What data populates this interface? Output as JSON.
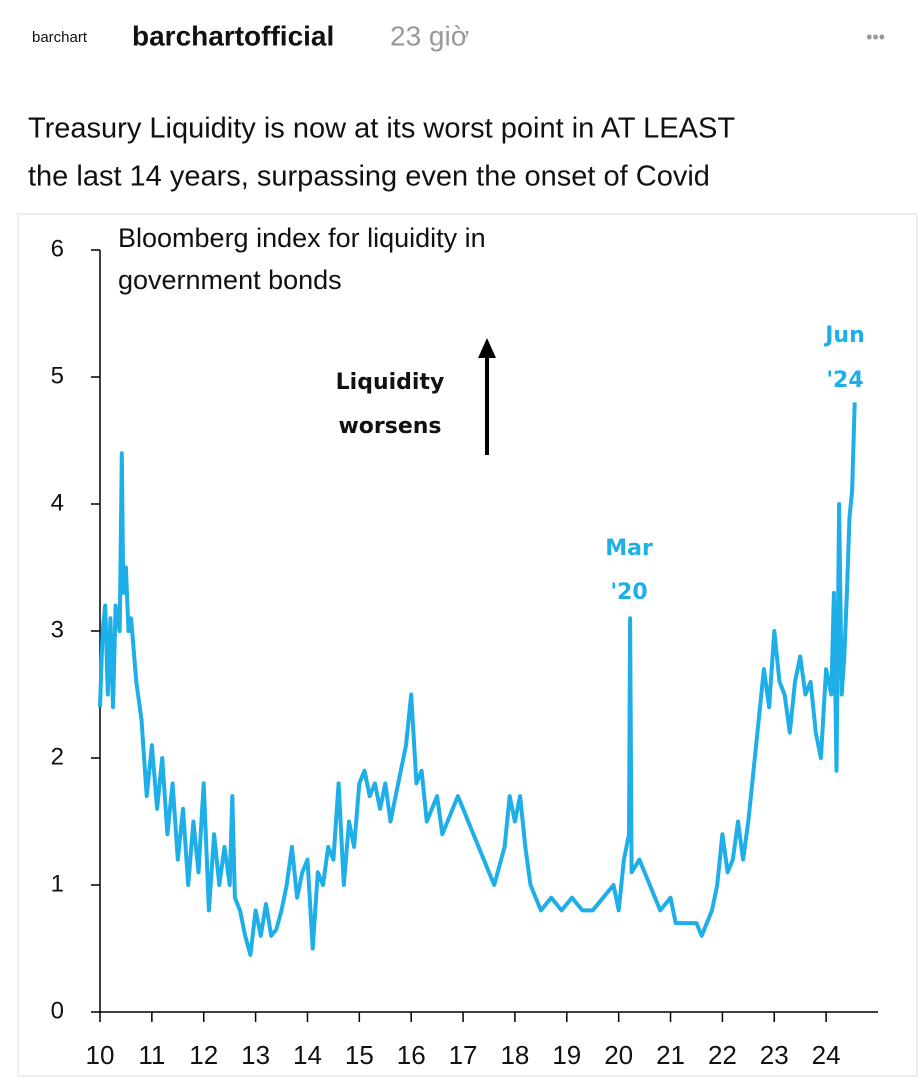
{
  "post": {
    "brand": "barchart",
    "author": "barchartofficial",
    "time": "23 giờ",
    "menu": "•••",
    "text": [
      "Treasury Liquidity is now at its worst point in AT LEAST",
      "the last 14 years, surpassing even the onset of Covid"
    ]
  },
  "chart_data": {
    "type": "line",
    "title": [
      "Bloomberg index for liquidity in",
      "government bonds"
    ],
    "annotations": [
      {
        "lines": [
          "Liquidity",
          "worsens"
        ]
      },
      {
        "lines": [
          "Mar",
          "'20"
        ]
      },
      {
        "lines": [
          "Jun",
          "'24"
        ]
      }
    ],
    "xlim": [
      10,
      25
    ],
    "xticks": [
      10,
      11,
      12,
      13,
      14,
      15,
      16,
      17,
      18,
      19,
      20,
      21,
      22,
      23,
      24
    ],
    "ylim": [
      0,
      6
    ],
    "yticks": [
      0,
      1,
      2,
      3,
      4,
      5,
      6
    ],
    "series": [
      {
        "color": "#1eaee8",
        "x": [
          10.0,
          10.05,
          10.1,
          10.15,
          10.2,
          10.25,
          10.3,
          10.38,
          10.42,
          10.45,
          10.5,
          10.55,
          10.6,
          10.7,
          10.8,
          10.9,
          11.0,
          11.1,
          11.2,
          11.3,
          11.4,
          11.5,
          11.6,
          11.7,
          11.8,
          11.9,
          12.0,
          12.1,
          12.2,
          12.3,
          12.4,
          12.5,
          12.55,
          12.6,
          12.7,
          12.8,
          12.9,
          13.0,
          13.1,
          13.2,
          13.3,
          13.4,
          13.5,
          13.6,
          13.7,
          13.8,
          13.9,
          14.0,
          14.1,
          14.2,
          14.3,
          14.4,
          14.5,
          14.6,
          14.7,
          14.8,
          14.9,
          15.0,
          15.1,
          15.2,
          15.3,
          15.4,
          15.5,
          15.6,
          15.7,
          15.8,
          15.9,
          16.0,
          16.1,
          16.2,
          16.3,
          16.4,
          16.5,
          16.6,
          16.7,
          16.8,
          16.9,
          17.0,
          17.2,
          17.4,
          17.6,
          17.8,
          17.9,
          18.0,
          18.1,
          18.2,
          18.3,
          18.5,
          18.7,
          18.9,
          19.1,
          19.3,
          19.5,
          19.7,
          19.9,
          20.0,
          20.1,
          20.2,
          20.22,
          20.25,
          20.4,
          20.6,
          20.8,
          21.0,
          21.1,
          21.3,
          21.5,
          21.6,
          21.7,
          21.8,
          21.9,
          22.0,
          22.1,
          22.2,
          22.3,
          22.4,
          22.5,
          22.6,
          22.7,
          22.8,
          22.9,
          23.0,
          23.1,
          23.2,
          23.3,
          23.4,
          23.5,
          23.6,
          23.7,
          23.8,
          23.9,
          24.0,
          24.1,
          24.15,
          24.2,
          24.25,
          24.3,
          24.35,
          24.4,
          24.45,
          24.5,
          24.55
        ],
        "values": [
          2.4,
          3.0,
          3.2,
          2.5,
          3.1,
          2.4,
          3.2,
          3.0,
          4.4,
          3.3,
          3.5,
          3.0,
          3.1,
          2.6,
          2.3,
          1.7,
          2.1,
          1.6,
          2.0,
          1.4,
          1.8,
          1.2,
          1.6,
          1.0,
          1.5,
          1.1,
          1.8,
          0.8,
          1.4,
          1.0,
          1.3,
          1.0,
          1.7,
          0.9,
          0.8,
          0.6,
          0.45,
          0.8,
          0.6,
          0.85,
          0.6,
          0.65,
          0.8,
          1.0,
          1.3,
          0.9,
          1.1,
          1.2,
          0.5,
          1.1,
          1.0,
          1.3,
          1.2,
          1.8,
          1.0,
          1.5,
          1.3,
          1.8,
          1.9,
          1.7,
          1.8,
          1.6,
          1.8,
          1.5,
          1.7,
          1.9,
          2.1,
          2.5,
          1.8,
          1.9,
          1.5,
          1.6,
          1.7,
          1.4,
          1.5,
          1.6,
          1.7,
          1.6,
          1.4,
          1.2,
          1.0,
          1.3,
          1.7,
          1.5,
          1.7,
          1.3,
          1.0,
          0.8,
          0.9,
          0.8,
          0.9,
          0.8,
          0.8,
          0.9,
          1.0,
          0.8,
          1.2,
          1.4,
          3.1,
          1.1,
          1.2,
          1.0,
          0.8,
          0.9,
          0.7,
          0.7,
          0.7,
          0.6,
          0.7,
          0.8,
          1.0,
          1.4,
          1.1,
          1.2,
          1.5,
          1.2,
          1.5,
          1.9,
          2.3,
          2.7,
          2.4,
          3.0,
          2.6,
          2.5,
          2.2,
          2.6,
          2.8,
          2.5,
          2.6,
          2.2,
          2.0,
          2.7,
          2.5,
          3.3,
          1.9,
          4.0,
          2.5,
          2.8,
          3.3,
          3.9,
          4.1,
          4.8
        ]
      }
    ]
  }
}
